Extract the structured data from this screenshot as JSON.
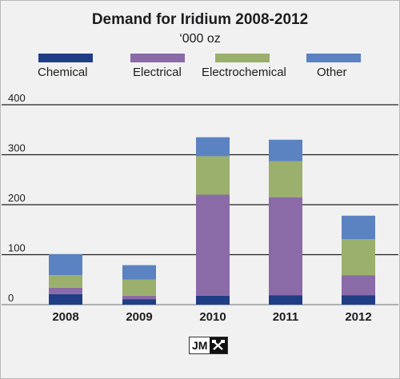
{
  "chart_data": {
    "type": "bar",
    "stacked": true,
    "title": "Demand for Iridium 2008-2012",
    "subtitle": "‘000 oz",
    "categories": [
      "2008",
      "2009",
      "2010",
      "2011",
      "2012"
    ],
    "series": [
      {
        "name": "Chemical",
        "color": "#1f3e86",
        "values": [
          21,
          11,
          18,
          19,
          19
        ]
      },
      {
        "name": "Electrical",
        "color": "#8b6aa8",
        "values": [
          13,
          7,
          202,
          196,
          40
        ]
      },
      {
        "name": "Electrochemical",
        "color": "#9bb06c",
        "values": [
          25,
          32,
          77,
          72,
          72
        ]
      },
      {
        "name": "Other",
        "color": "#5b82c1",
        "values": [
          42,
          29,
          38,
          43,
          47
        ]
      }
    ],
    "yticks": [
      "0",
      "100",
      "200",
      "300",
      "400"
    ],
    "ylim": [
      0,
      400
    ],
    "gridlines": "horizontal",
    "legend_position": "top"
  },
  "logo": {
    "text": "JM"
  }
}
